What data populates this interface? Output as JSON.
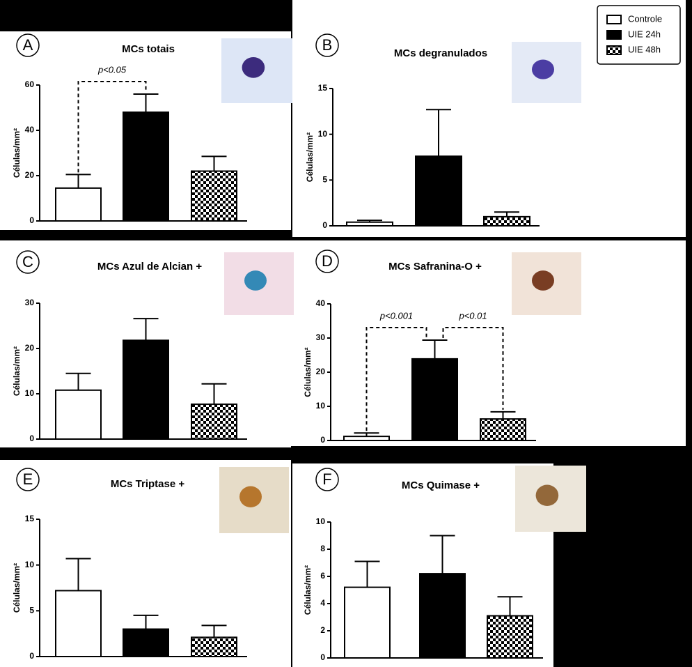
{
  "legend": [
    {
      "name": "Controle",
      "fill": "white"
    },
    {
      "name": "UIE 24h",
      "fill": "black"
    },
    {
      "name": "UIE 48h",
      "fill": "checker"
    }
  ],
  "chart_data": [
    {
      "type": "bar",
      "panel": "A",
      "title": "MCs totais",
      "ylabel": "Células/mm²",
      "ylim": [
        0,
        60
      ],
      "yticks": [
        0,
        20,
        40,
        60
      ],
      "values": [
        14.5,
        48,
        22
      ],
      "errors": [
        6,
        8,
        6.5
      ],
      "annotations": [
        {
          "text": "p<0.05",
          "from": 0,
          "to": 1
        }
      ]
    },
    {
      "type": "bar",
      "panel": "B",
      "title": "MCs degranulados",
      "ylabel": "Células/mm²",
      "ylim": [
        0,
        15
      ],
      "yticks": [
        0,
        5,
        10,
        15
      ],
      "values": [
        0.4,
        7.6,
        1.0
      ],
      "errors": [
        0.2,
        5.1,
        0.5
      ]
    },
    {
      "type": "bar",
      "panel": "C",
      "title": "MCs Azul de Alcian +",
      "ylabel": "Células/mm²",
      "ylim": [
        0,
        30
      ],
      "yticks": [
        0,
        10,
        20,
        30
      ],
      "values": [
        10.8,
        21.8,
        7.7
      ],
      "errors": [
        3.7,
        4.8,
        4.5
      ]
    },
    {
      "type": "bar",
      "panel": "D",
      "title": "MCs Safranina-O +",
      "ylabel": "Células/mm²",
      "ylim": [
        0,
        40
      ],
      "yticks": [
        0,
        10,
        20,
        30,
        40
      ],
      "values": [
        1.2,
        23.9,
        6.3
      ],
      "errors": [
        1,
        5.5,
        2.1
      ],
      "annotations": [
        {
          "text": "p<0.001",
          "from": 0,
          "to": 1
        },
        {
          "text": "p<0.01",
          "from": 1,
          "to": 2
        }
      ]
    },
    {
      "type": "bar",
      "panel": "E",
      "title": "MCs Triptase +",
      "ylabel": "Células/mm²",
      "ylim": [
        0,
        15
      ],
      "yticks": [
        0,
        5,
        10,
        15
      ],
      "values": [
        7.2,
        3.0,
        2.1
      ],
      "errors": [
        3.5,
        1.5,
        1.3
      ]
    },
    {
      "type": "bar",
      "panel": "F",
      "title": "MCs Quimase +",
      "ylabel": "Células/mm²",
      "ylim": [
        0,
        10
      ],
      "yticks": [
        0,
        2,
        4,
        6,
        8,
        10
      ],
      "values": [
        5.2,
        6.2,
        3.1
      ],
      "errors": [
        1.9,
        2.8,
        1.4
      ]
    }
  ]
}
